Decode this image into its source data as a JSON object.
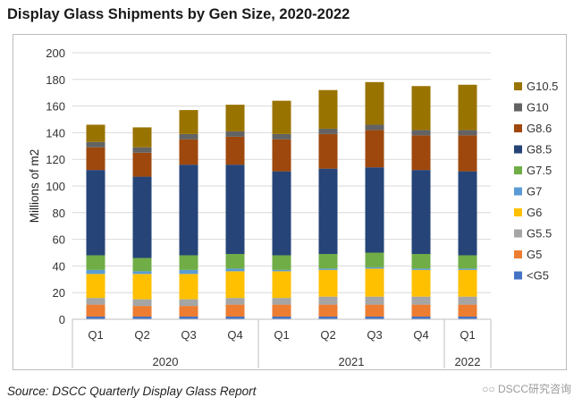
{
  "title": "Display Glass Shipments by Gen Size, 2020-2022",
  "source": "Source: DSCC Quarterly Display Glass Report",
  "watermark": "DSCC研究咨询",
  "chart_data": {
    "type": "bar",
    "stacked": true,
    "ylabel": "Millions of m2",
    "ylim": [
      0,
      200
    ],
    "yticks": [
      0,
      20,
      40,
      60,
      80,
      100,
      120,
      140,
      160,
      180,
      200
    ],
    "grid": true,
    "legend_position": "right",
    "categories": [
      "Q1",
      "Q2",
      "Q3",
      "Q4",
      "Q1",
      "Q2",
      "Q3",
      "Q4",
      "Q1"
    ],
    "groups": [
      {
        "label": "2020",
        "span": 4
      },
      {
        "label": "2021",
        "span": 4
      },
      {
        "label": "2022",
        "span": 1
      }
    ],
    "series": [
      {
        "name": "<G5",
        "color": "#4472c4",
        "values": [
          2,
          2,
          2,
          2,
          2,
          2,
          2,
          2,
          2
        ]
      },
      {
        "name": "G5",
        "color": "#ed7d31",
        "values": [
          9,
          8,
          8,
          9,
          9,
          9,
          9,
          9,
          9
        ]
      },
      {
        "name": "G5.5",
        "color": "#a5a5a5",
        "values": [
          5,
          5,
          5,
          5,
          5,
          6,
          6,
          6,
          6
        ]
      },
      {
        "name": "G6",
        "color": "#ffc000",
        "values": [
          18,
          19,
          19,
          20,
          20,
          20,
          21,
          20,
          20
        ]
      },
      {
        "name": "G7",
        "color": "#5b9bd5",
        "values": [
          3,
          2,
          3,
          2,
          1,
          1,
          1,
          1,
          1
        ]
      },
      {
        "name": "G7.5",
        "color": "#70ad47",
        "values": [
          11,
          10,
          11,
          11,
          11,
          11,
          11,
          11,
          10
        ]
      },
      {
        "name": "G8.5",
        "color": "#264478",
        "values": [
          64,
          61,
          68,
          67,
          63,
          64,
          64,
          63,
          63
        ]
      },
      {
        "name": "G8.6",
        "color": "#9e480e",
        "values": [
          17,
          18,
          19,
          21,
          24,
          26,
          28,
          26,
          27
        ]
      },
      {
        "name": "G10",
        "color": "#636363",
        "values": [
          4,
          4,
          4,
          4,
          4,
          4,
          4,
          4,
          4
        ]
      },
      {
        "name": "G10.5",
        "color": "#997300",
        "values": [
          13,
          15,
          18,
          20,
          25,
          29,
          32,
          33,
          34
        ]
      }
    ]
  }
}
